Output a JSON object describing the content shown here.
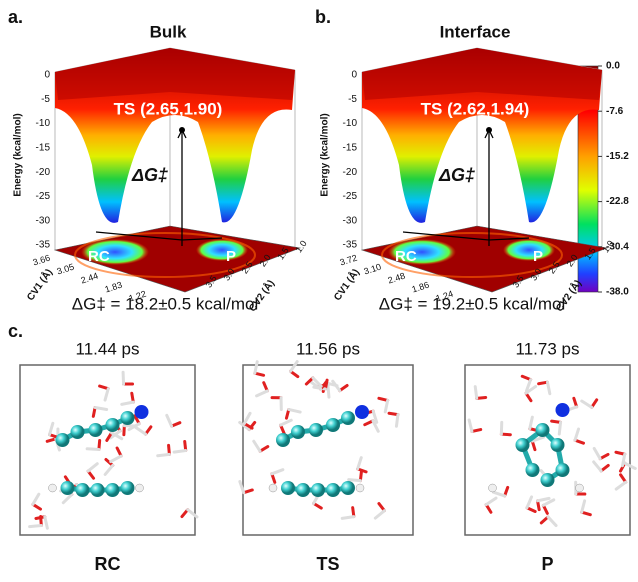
{
  "panels": [
    {
      "label": "a.",
      "title": "Bulk",
      "energy_axis_label": "Energy (kcal/mol)",
      "energy_ticks": [
        "0",
        "-5",
        "-10",
        "-15",
        "-20",
        "-25",
        "-30",
        "-35"
      ],
      "ts_label": "TS (2.65,1.90)",
      "barrier_symbol": "ΔG‡",
      "reactant_label": "RC",
      "product_label": "P",
      "cv1_label": "CV1 (Å)",
      "cv1_ticks": [
        "3.66",
        "3.05",
        "2.44",
        "1.83",
        "1.22"
      ],
      "cv2_label": "CV2 (Å)",
      "cv2_ticks": [
        "1.0",
        "1.5",
        "2.0",
        "2.5",
        "3.0",
        "3.5"
      ],
      "barrier_text": "ΔG‡ = 18.2±0.5 kcal/mol"
    },
    {
      "label": "b.",
      "title": "Interface",
      "energy_axis_label": "Energy (kcal/mol)",
      "energy_ticks": [
        "0",
        "-5",
        "-10",
        "-15",
        "-20",
        "-25",
        "-30",
        "-35"
      ],
      "ts_label": "TS (2.62,1.94)",
      "barrier_symbol": "ΔG‡",
      "reactant_label": "RC",
      "product_label": "P",
      "cv1_label": "CV1 (Å)",
      "cv1_ticks": [
        "3.72",
        "3.10",
        "2.48",
        "1.86",
        "1.24"
      ],
      "cv2_label": "CV2 (Å)",
      "cv2_ticks": [
        "1.0",
        "1.5",
        "2.0",
        "2.5",
        "3.0",
        "3.5"
      ],
      "barrier_text": "ΔG‡ = 19.2±0.5 kcal/mol"
    }
  ],
  "colorbar": {
    "ticks": [
      "0.0",
      "-7.6",
      "-15.2",
      "-22.8",
      "-30.4",
      "-38.0"
    ]
  },
  "snapshots": {
    "label": "c.",
    "frames": [
      {
        "time": "11.44 ps",
        "state": "RC"
      },
      {
        "time": "11.56 ps",
        "state": "TS"
      },
      {
        "time": "11.73 ps",
        "state": "P"
      }
    ]
  }
}
